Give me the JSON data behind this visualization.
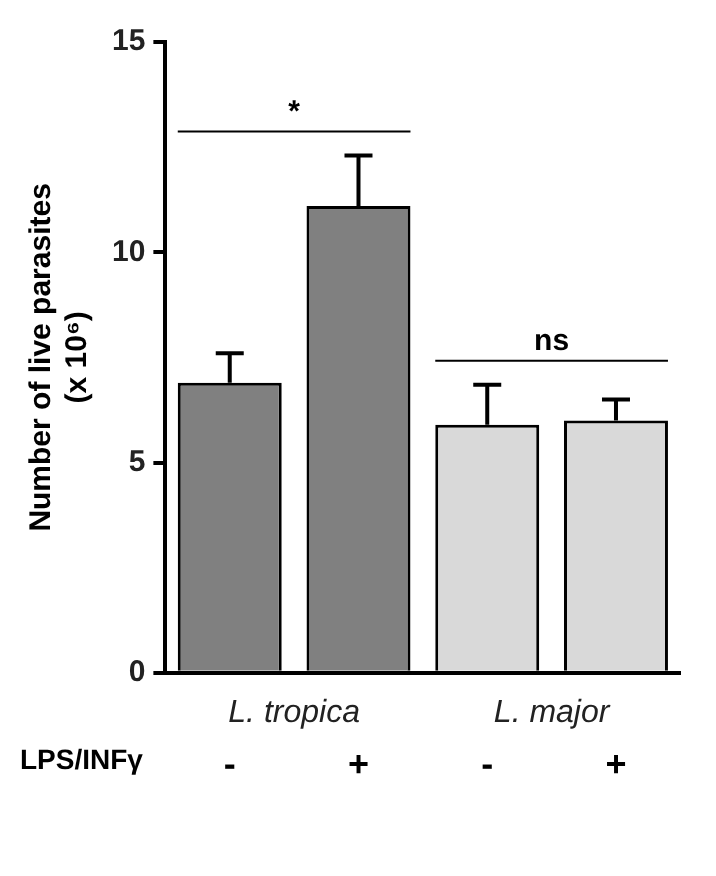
{
  "chart_data": {
    "type": "bar",
    "ylabel": "Number of live parasites\n(x 10⁶)",
    "categories": [
      "-",
      "+",
      "-",
      "+"
    ],
    "values": [
      6.9,
      11.1,
      5.9,
      6.0
    ],
    "colors": [
      "#808080",
      "#808080",
      "#d9d9d9",
      "#d9d9d9"
    ],
    "errors": [
      [
        6.9,
        7.6
      ],
      [
        11.1,
        12.3
      ],
      [
        5.9,
        6.85
      ],
      [
        6.0,
        6.5
      ]
    ],
    "ylim": [
      0,
      15
    ],
    "yticks": [
      0,
      5,
      10,
      15
    ],
    "grid": false,
    "legend": false,
    "annotations": [
      "*",
      "ns",
      "L. tropica",
      "L. major",
      "LPS/INFγ"
    ]
  }
}
